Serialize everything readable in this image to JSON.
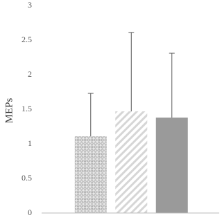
{
  "chart_data": {
    "type": "bar",
    "y_label": "MEPs",
    "categories": [
      null,
      null,
      null
    ],
    "values": [
      1.11,
      1.47,
      1.38
    ],
    "errors": [
      0.62,
      1.14,
      0.93
    ],
    "colors": [
      "#b8b8b8",
      "#d6d6d6",
      "#9a9a9a"
    ],
    "patterns": [
      "dots",
      "diagonal",
      "solid"
    ],
    "ylim": [
      0,
      3
    ],
    "yticks": [
      0,
      0.5,
      1,
      1.5,
      2,
      2.5,
      3
    ],
    "grid": false
  }
}
